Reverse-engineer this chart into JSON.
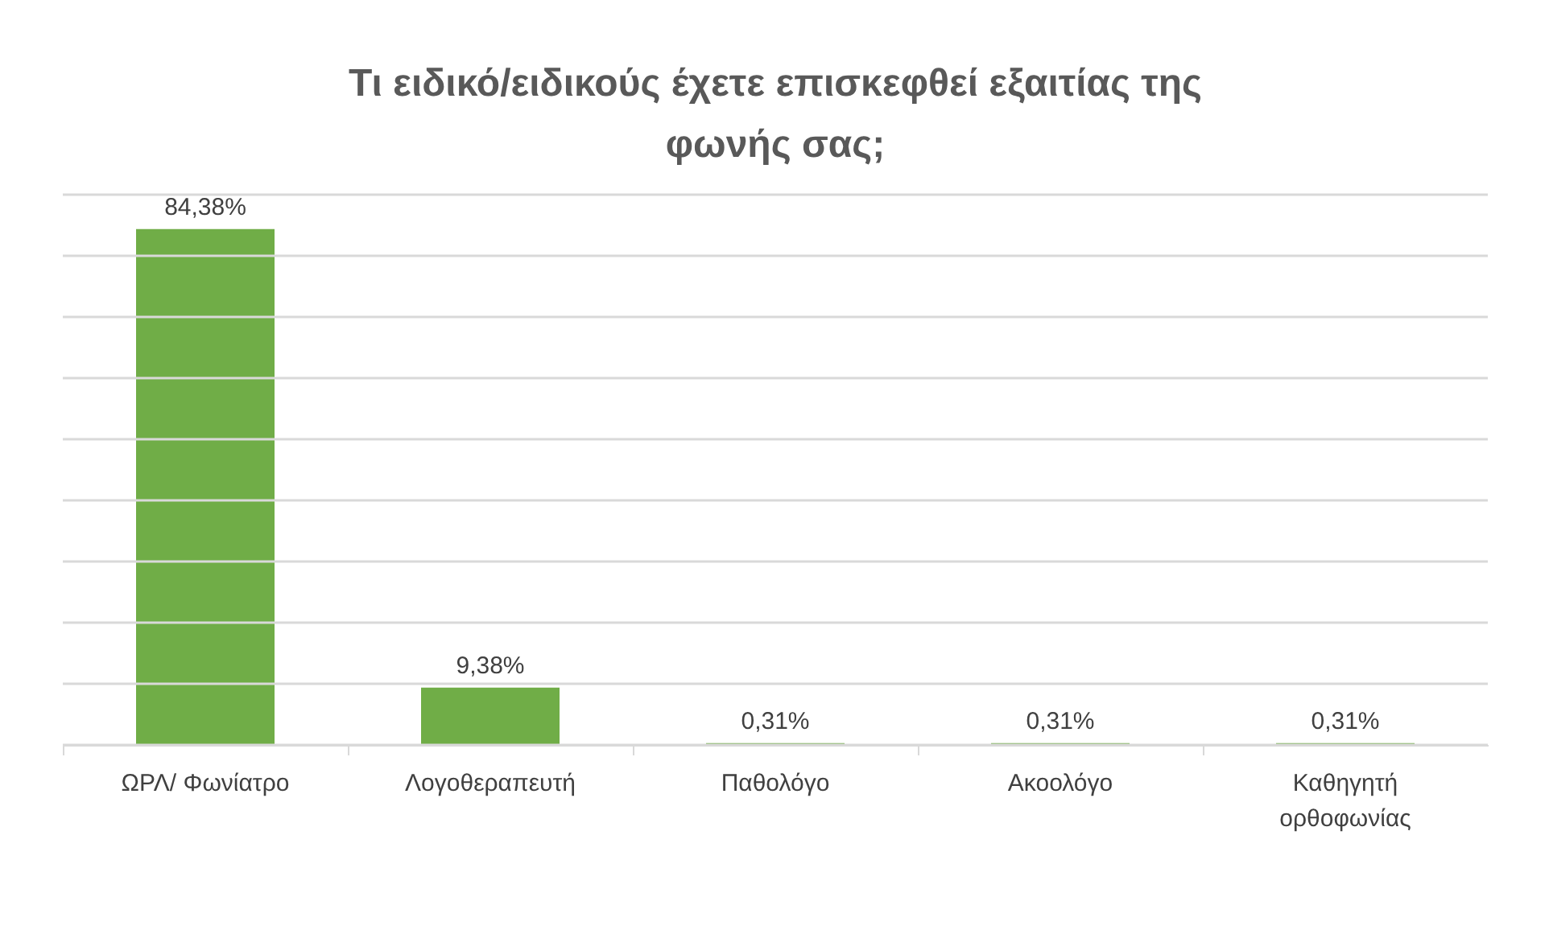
{
  "chart_data": {
    "type": "bar",
    "title": "Τι ειδικό/ειδικούς έχετε επισκεφθεί εξαιτίας της φωνής σας;",
    "categories": [
      "ΩΡΛ/ Φωνίατρο",
      "Λογοθεραπευτή",
      "Παθολόγο",
      "Ακοολόγο",
      "Καθηγητή ορθοφωνίας"
    ],
    "values": [
      84.38,
      9.38,
      0.31,
      0.31,
      0.31
    ],
    "value_labels": [
      "84,38%",
      "9,38%",
      "0,31%",
      "0,31%",
      "0,31%"
    ],
    "color": "#70ad47",
    "ylim": [
      0,
      90
    ],
    "yticks": [
      {
        "value": 0,
        "label": null
      },
      {
        "value": 10,
        "label": null
      },
      {
        "value": 20,
        "label": null
      },
      {
        "value": 30,
        "label": null
      },
      {
        "value": 40,
        "label": null
      },
      {
        "value": 50,
        "label": null
      },
      {
        "value": 60,
        "label": null
      },
      {
        "value": 70,
        "label": null
      },
      {
        "value": 80,
        "label": null
      },
      {
        "value": 90,
        "label": null
      }
    ],
    "tick_labels": "x",
    "grid": "y"
  }
}
